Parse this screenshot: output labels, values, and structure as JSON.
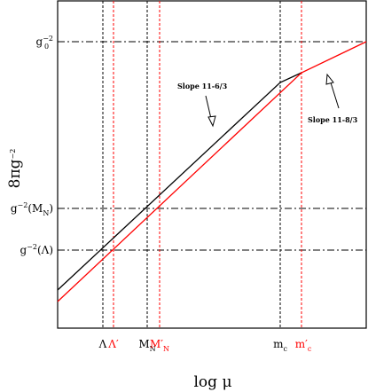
{
  "axis_title_y": [
    {
      "t": "8πg"
    },
    {
      "t": "−2",
      "pos": "sup"
    }
  ],
  "axis_title_x": [
    {
      "t": "log μ"
    }
  ],
  "y_labels": [
    [
      {
        "t": "g"
      },
      {
        "t": "−2",
        "pos": "sup"
      },
      {
        "t": "0",
        "pos": "sub"
      }
    ],
    [
      {
        "t": "g"
      },
      {
        "t": "−2",
        "pos": "sup"
      },
      {
        "t": "(M"
      },
      {
        "t": "N",
        "pos": "sub"
      },
      {
        "t": ")"
      }
    ],
    [
      {
        "t": "g"
      },
      {
        "t": "−2",
        "pos": "sup"
      },
      {
        "t": "(Λ)"
      }
    ]
  ],
  "x_labels": [
    [
      {
        "t": "Λ"
      }
    ],
    [
      {
        "t": "Λ′",
        "color": "red"
      }
    ],
    [
      {
        "t": "M"
      },
      {
        "t": "N",
        "pos": "sub"
      }
    ],
    [
      {
        "t": "M′",
        "color": "red"
      },
      {
        "t": "N",
        "pos": "sub",
        "color": "red"
      }
    ],
    [
      {
        "t": "m"
      },
      {
        "t": "c",
        "pos": "sub"
      }
    ],
    [
      {
        "t": "m′",
        "color": "red"
      },
      {
        "t": "c",
        "pos": "sub",
        "color": "red"
      }
    ]
  ],
  "annotations": [
    "Slope 11-6/3",
    "Slope 11-8/3"
  ]
}
